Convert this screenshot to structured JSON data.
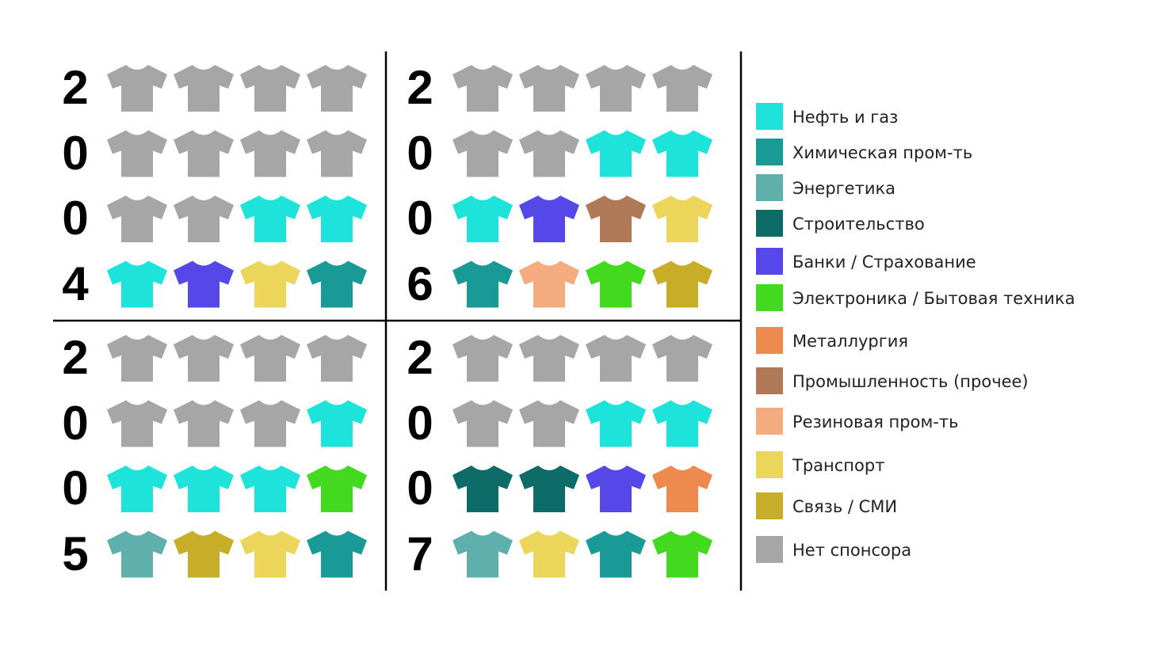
{
  "legend": [
    {
      "name": "Нефть и газ",
      "color": "#1de3da"
    },
    {
      "name": "Химическая пром-ть",
      "color": "#1a9a96"
    },
    {
      "name": "Энергетика",
      "color": "#5fb0ac"
    },
    {
      "name": "Строительство",
      "color": "#0d6b68"
    },
    {
      "name": "Банки / Страхование",
      "color": "#5648e8"
    },
    {
      "name": "Электроника / Бытовая техника",
      "color": "#43d91e"
    },
    {
      "name": "Металлургия",
      "color": "#ec8a50"
    },
    {
      "name": "Промышленность (прочее)",
      "color": "#b07a58"
    },
    {
      "name": "Резиновая пром-ть",
      "color": "#f5ab80"
    },
    {
      "name": "Транспорт",
      "color": "#ebd55a"
    },
    {
      "name": "Связь / СМИ",
      "color": "#c8ad28"
    },
    {
      "name": "Нет спонсора",
      "color": "#a6a6a6"
    }
  ],
  "panels": [
    {
      "year": "2004",
      "shirts": [
        [
          11,
          11,
          11,
          11
        ],
        [
          11,
          11,
          11,
          11
        ],
        [
          11,
          11,
          0,
          0
        ],
        [
          0,
          4,
          9,
          1
        ]
      ]
    },
    {
      "year": "2006",
      "shirts": [
        [
          11,
          11,
          11,
          11
        ],
        [
          11,
          11,
          0,
          0
        ],
        [
          0,
          4,
          7,
          9
        ],
        [
          1,
          8,
          5,
          10
        ]
      ]
    },
    {
      "year": "2005",
      "shirts": [
        [
          11,
          11,
          11,
          11
        ],
        [
          11,
          11,
          11,
          0
        ],
        [
          0,
          0,
          0,
          5
        ],
        [
          2,
          10,
          9,
          1
        ]
      ]
    },
    {
      "year": "2007",
      "shirts": [
        [
          11,
          11,
          11,
          11
        ],
        [
          11,
          11,
          0,
          0
        ],
        [
          3,
          3,
          4,
          6
        ],
        [
          2,
          9,
          1,
          5
        ]
      ]
    }
  ]
}
